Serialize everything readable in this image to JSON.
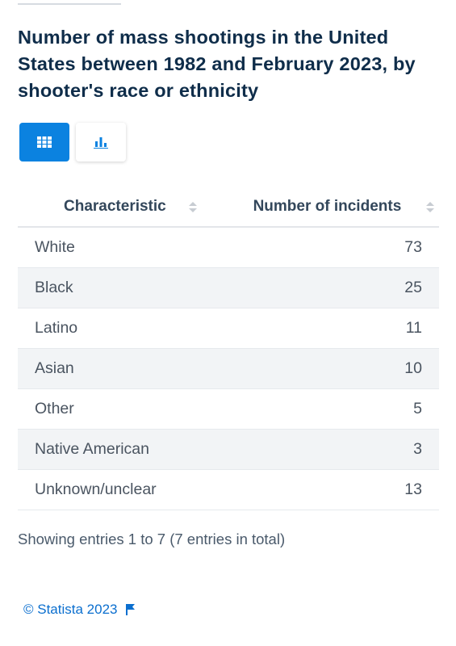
{
  "title": "Number of mass shootings in the United States between 1982 and February 2023, by shooter's race or ethnicity",
  "view_toggle": {
    "selected": "table",
    "table_icon": "table-grid-icon",
    "chart_icon": "bar-chart-icon"
  },
  "colors": {
    "accent": "#0b82e0",
    "title": "#0f2d4a",
    "link": "#0b6fcf",
    "row_alt": "#f2f4f6"
  },
  "table": {
    "headers": [
      "Characteristic",
      "Number of incidents"
    ],
    "rows": [
      {
        "label": "White",
        "value": "73"
      },
      {
        "label": "Black",
        "value": "25"
      },
      {
        "label": "Latino",
        "value": "11"
      },
      {
        "label": "Asian",
        "value": "10"
      },
      {
        "label": "Other",
        "value": "5"
      },
      {
        "label": "Native American",
        "value": "3"
      },
      {
        "label": "Unknown/unclear",
        "value": "13"
      }
    ]
  },
  "chart_data": {
    "type": "table",
    "title": "Number of mass shootings in the United States between 1982 and February 2023, by shooter's race or ethnicity",
    "columns": [
      "Characteristic",
      "Number of incidents"
    ],
    "categories": [
      "White",
      "Black",
      "Latino",
      "Asian",
      "Other",
      "Native American",
      "Unknown/unclear"
    ],
    "values": [
      73,
      25,
      11,
      10,
      5,
      3,
      13
    ]
  },
  "entries_text": "Showing entries 1 to 7 (7 entries in total)",
  "footer": {
    "copyright": "© Statista 2023",
    "flag_icon": "flag-icon"
  }
}
